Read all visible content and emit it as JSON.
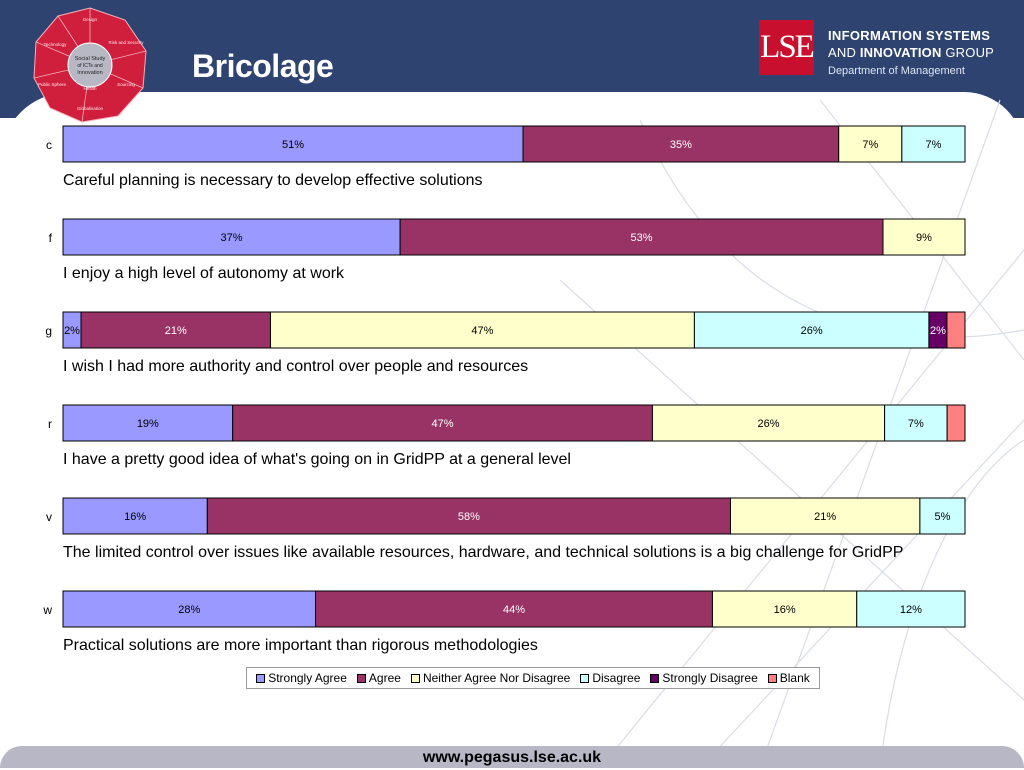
{
  "header": {
    "title": "Bricolage",
    "badge_center": [
      "Social Study",
      "of ICTs and",
      "Innovation"
    ],
    "badge_segments": [
      "Design",
      "Risk and Security",
      "Sourcing",
      "Globalisation",
      "Public Sphere",
      "Technology",
      "Health"
    ],
    "logo_text": "LSE",
    "org_line1": "INFORMATION SYSTEMS",
    "org_line2_prefix": "AND ",
    "org_line2_bold": "INNOVATION",
    "org_line2_suffix": " GROUP",
    "org_line3": "Department of Management"
  },
  "footer": {
    "url": "www.pegasus.lse.ac.uk"
  },
  "colors": {
    "header_bg": "#2e4370",
    "strongly_agree": "#9999ff",
    "agree": "#993366",
    "neither": "#ffffcc",
    "disagree": "#ccffff",
    "strongly_disagree": "#660066",
    "blank": "#ff8080"
  },
  "chart_data": {
    "type": "bar",
    "orientation": "horizontal",
    "stacked": "100%",
    "xlim": [
      0,
      100
    ],
    "legend_position": "bottom",
    "series": [
      {
        "name": "Strongly Agree",
        "color": "#9999ff"
      },
      {
        "name": "Agree",
        "color": "#993366"
      },
      {
        "name": "Neither Agree Nor Disagree",
        "color": "#ffffcc"
      },
      {
        "name": "Disagree",
        "color": "#ccffff"
      },
      {
        "name": "Strongly Disagree",
        "color": "#660066"
      },
      {
        "name": "Blank",
        "color": "#ff8080"
      }
    ],
    "rows": [
      {
        "id": "c",
        "statement": "Careful planning is necessary to develop effective solutions",
        "values": [
          51,
          35,
          7,
          7,
          0,
          0
        ],
        "labels": [
          "51%",
          "35%",
          "7%",
          "7%",
          "",
          ""
        ]
      },
      {
        "id": "f",
        "statement": "I enjoy a high level of autonomy at work",
        "values": [
          37,
          53,
          9,
          0,
          0,
          0
        ],
        "labels": [
          "37%",
          "53%",
          "9%",
          "",
          "",
          ""
        ]
      },
      {
        "id": "g",
        "statement": "I wish I had more authority and control over people and resources",
        "values": [
          2,
          21,
          47,
          26,
          2,
          2
        ],
        "labels": [
          "2%",
          "21%",
          "47%",
          "26%",
          "2%",
          ""
        ]
      },
      {
        "id": "r",
        "statement": "I have a pretty good idea of what's going on in GridPP at a general level",
        "values": [
          19,
          47,
          26,
          7,
          0,
          2
        ],
        "labels": [
          "19%",
          "47%",
          "26%",
          "7%",
          "",
          ""
        ]
      },
      {
        "id": "v",
        "statement": "The limited control over issues like available resources, hardware, and technical solutions is a big challenge for GridPP",
        "values": [
          16,
          58,
          21,
          5,
          0,
          0
        ],
        "labels": [
          "16%",
          "58%",
          "21%",
          "5%",
          "",
          ""
        ]
      },
      {
        "id": "w",
        "statement": "Practical solutions are more important than rigorous methodologies",
        "values": [
          28,
          44,
          16,
          12,
          0,
          0
        ],
        "labels": [
          "28%",
          "44%",
          "16%",
          "12%",
          "",
          ""
        ]
      }
    ]
  }
}
